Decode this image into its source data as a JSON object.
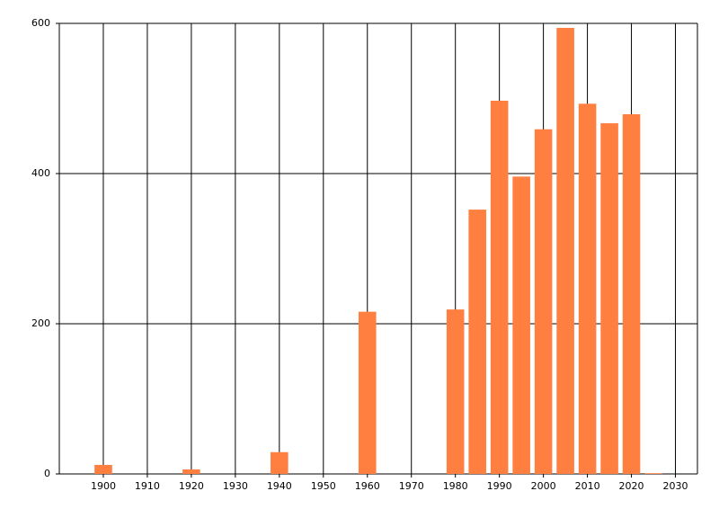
{
  "chart_data": {
    "type": "bar",
    "x": [
      1900,
      1920,
      1940,
      1960,
      1980,
      1985,
      1990,
      1995,
      2000,
      2005,
      2010,
      2015,
      2020,
      2025
    ],
    "values": [
      12,
      6,
      29,
      216,
      219,
      352,
      497,
      396,
      459,
      594,
      493,
      467,
      479,
      1
    ],
    "color": "#ff7f40",
    "xlim": [
      1890,
      2035
    ],
    "xticks": [
      1900,
      1910,
      1920,
      1930,
      1940,
      1950,
      1960,
      1970,
      1980,
      1990,
      2000,
      2010,
      2020,
      2030
    ],
    "ylim": [
      0,
      600
    ],
    "yticks": [
      0,
      200,
      400,
      600
    ],
    "grid": true
  }
}
